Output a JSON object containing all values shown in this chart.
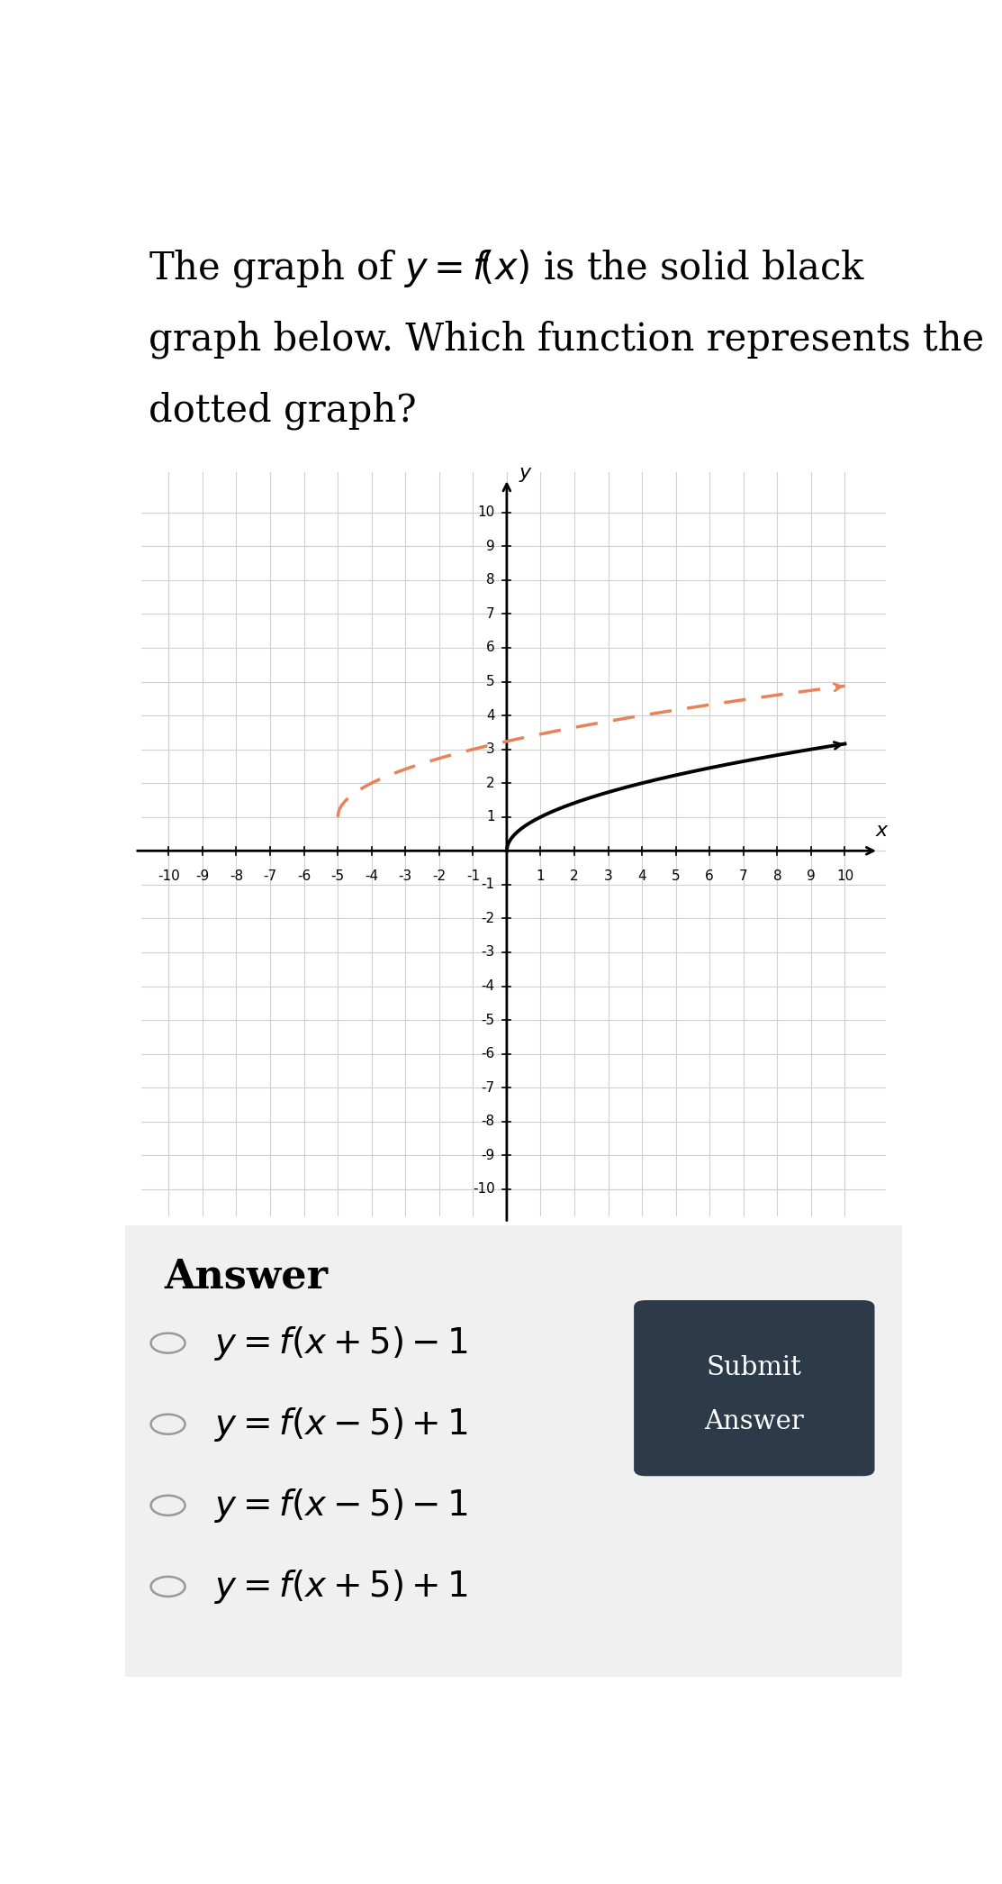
{
  "axis_xlim": [
    -10.5,
    10.5
  ],
  "axis_ylim": [
    -10,
    10
  ],
  "grid_color": "#d0d0d0",
  "axis_bg": "#f0f0f0",
  "solid_color": "#000000",
  "dotted_color": "#e8825a",
  "answer_bg": "#f0f0f0",
  "submit_bg": "#2d3a4a",
  "fig_bg": "#ffffff",
  "xticks": [
    -10,
    -9,
    -8,
    -7,
    -6,
    -5,
    -4,
    -3,
    -2,
    -1,
    1,
    2,
    3,
    4,
    5,
    6,
    7,
    8,
    9,
    10
  ],
  "yticks": [
    -10,
    -9,
    -8,
    -7,
    -6,
    -5,
    -4,
    -3,
    -2,
    -1,
    1,
    2,
    3,
    4,
    5,
    6,
    7,
    8,
    9,
    10
  ],
  "tick_fontsize": 11,
  "axis_label_fontsize": 16
}
